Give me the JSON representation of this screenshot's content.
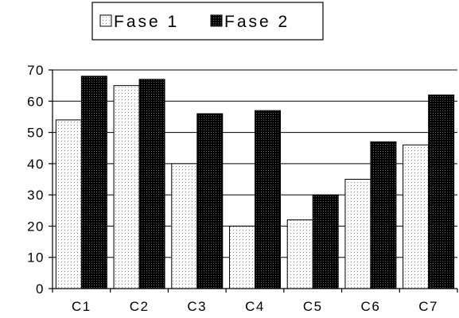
{
  "chart_data": {
    "type": "bar",
    "title": "",
    "xlabel": "",
    "ylabel": "",
    "categories": [
      "C1",
      "C2",
      "C3",
      "C4",
      "C5",
      "C6",
      "C7"
    ],
    "series": [
      {
        "name": "Fase 1",
        "values": [
          54,
          65,
          40,
          20,
          22,
          35,
          46
        ],
        "fill": "dotted-light",
        "color": "#ffffff"
      },
      {
        "name": "Fase 2",
        "values": [
          68,
          67,
          56,
          57,
          30,
          47,
          62
        ],
        "fill": "dotted-dark",
        "color": "#000000"
      }
    ],
    "ylim": [
      0,
      70
    ],
    "yticks": [
      0,
      10,
      20,
      30,
      40,
      50,
      60,
      70
    ],
    "grid": true,
    "legend_position": "top-center"
  }
}
